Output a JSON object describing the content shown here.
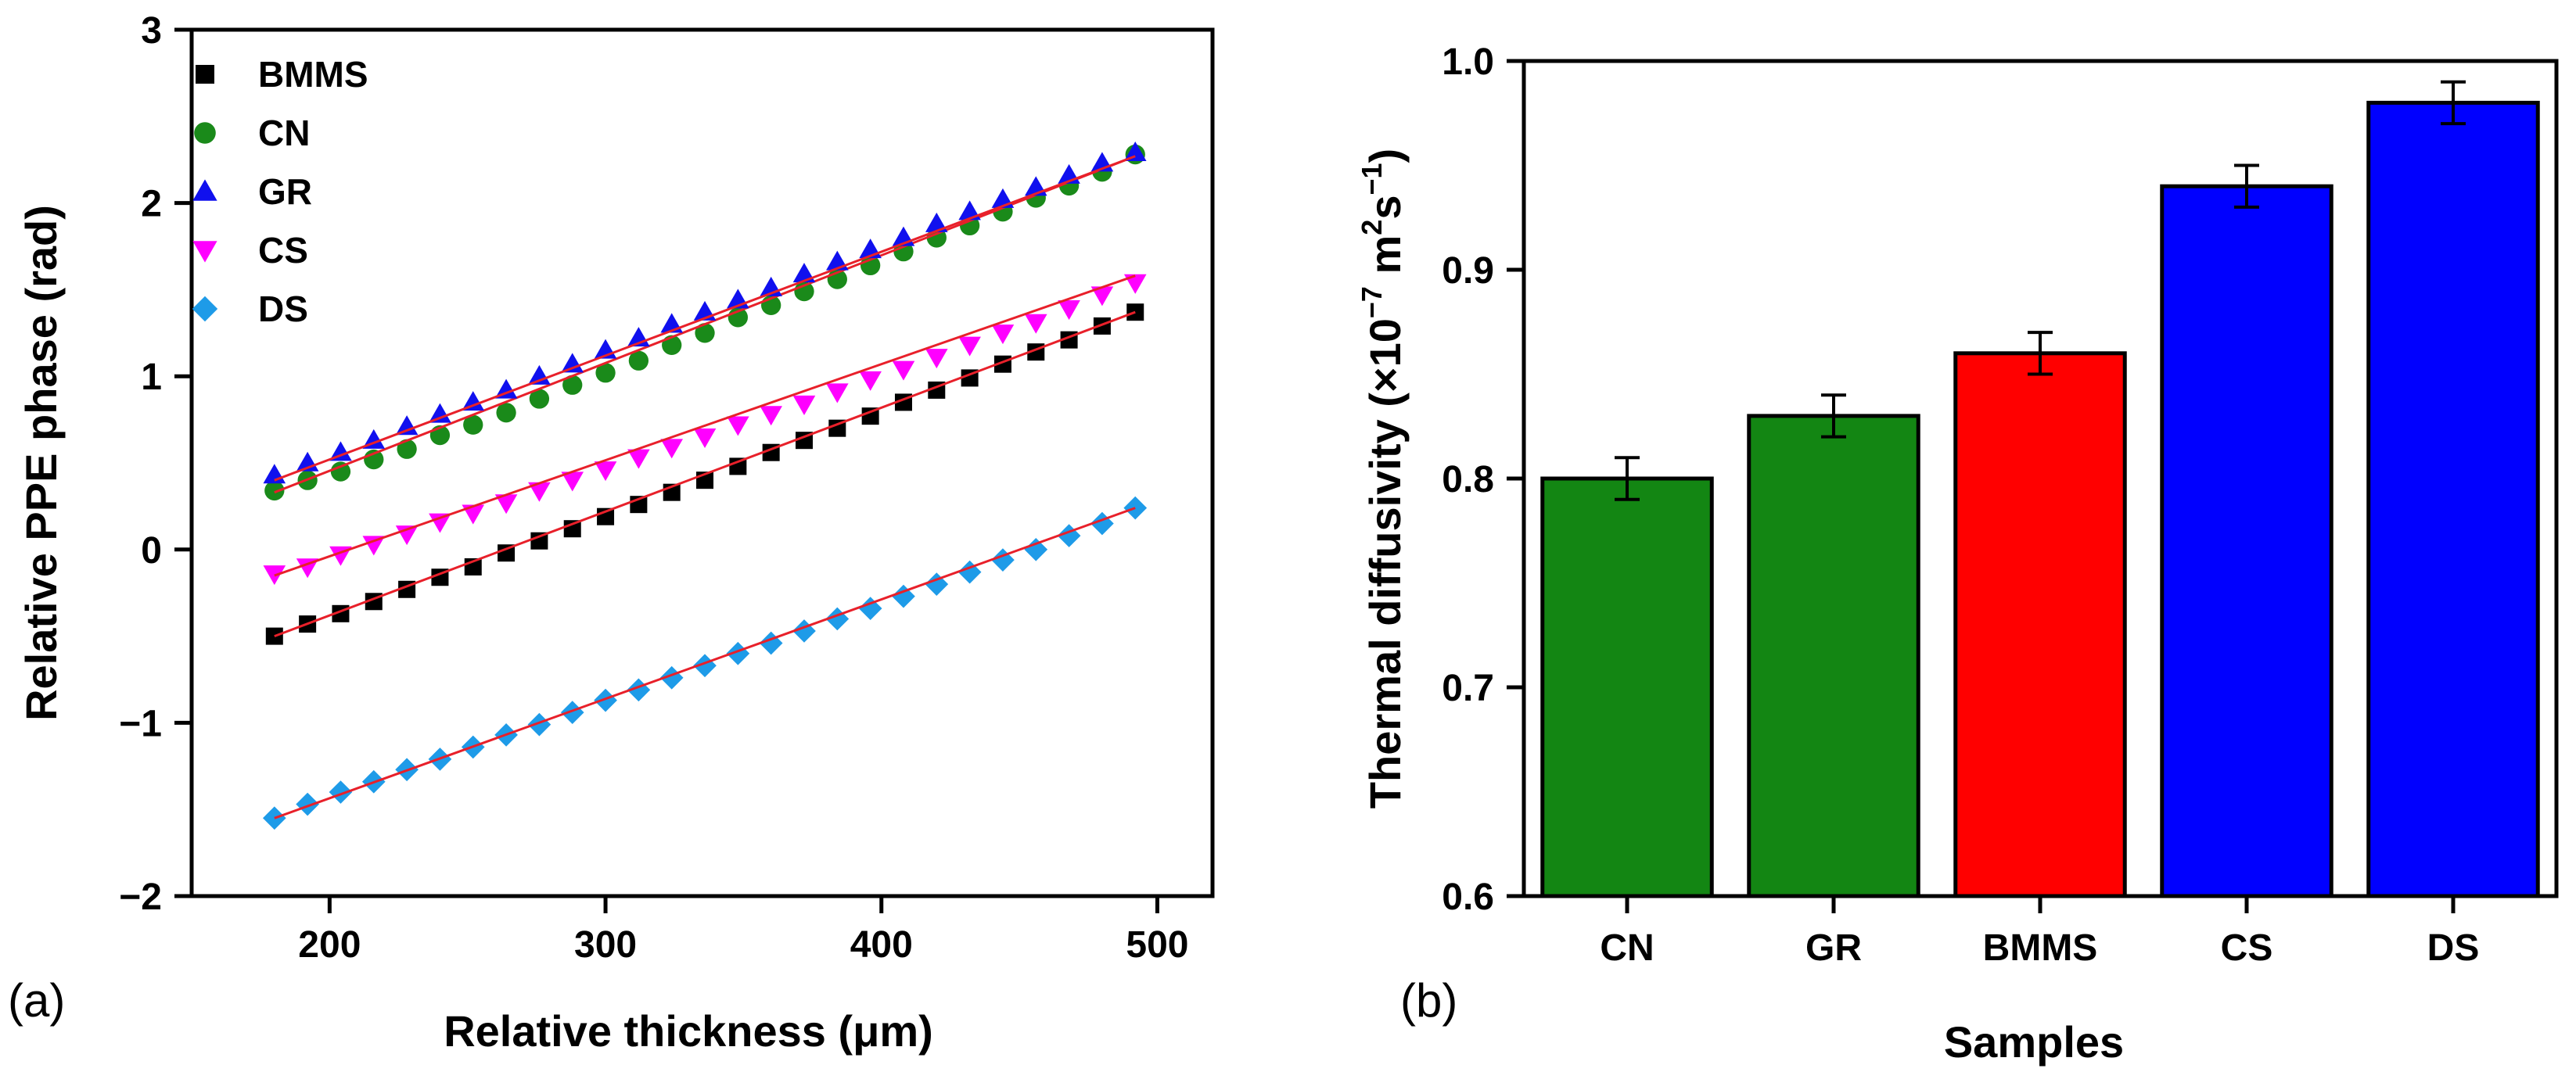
{
  "chart_data": [
    {
      "type": "scatter",
      "panel_label": "(a)",
      "xlabel": "Relative thickness (μm)",
      "ylabel": "Relative PPE phase (rad)",
      "xlim": [
        150,
        520
      ],
      "ylim": [
        -2,
        3
      ],
      "xticks": [
        200,
        300,
        400,
        500
      ],
      "yticks": [
        -2,
        -1,
        0,
        1,
        2,
        3
      ],
      "x": [
        180,
        192,
        204,
        216,
        228,
        240,
        252,
        264,
        276,
        288,
        300,
        312,
        324,
        336,
        348,
        360,
        372,
        384,
        396,
        408,
        420,
        432,
        444,
        456,
        468,
        480,
        492
      ],
      "fit_color": "#e8202a",
      "series": [
        {
          "name": "BMMS",
          "marker": "square",
          "color": "#000000",
          "values": [
            -0.5,
            -0.43,
            -0.37,
            -0.3,
            -0.23,
            -0.16,
            -0.1,
            -0.02,
            0.05,
            0.12,
            0.19,
            0.26,
            0.33,
            0.4,
            0.48,
            0.56,
            0.63,
            0.7,
            0.77,
            0.85,
            0.92,
            0.99,
            1.07,
            1.14,
            1.21,
            1.29,
            1.37
          ],
          "fit": [
            -0.5,
            1.37
          ]
        },
        {
          "name": "CN",
          "marker": "circle",
          "color": "#1a8a1a",
          "values": [
            0.34,
            0.4,
            0.45,
            0.52,
            0.58,
            0.66,
            0.72,
            0.79,
            0.87,
            0.95,
            1.02,
            1.09,
            1.18,
            1.25,
            1.34,
            1.41,
            1.49,
            1.56,
            1.64,
            1.72,
            1.8,
            1.87,
            1.95,
            2.03,
            2.1,
            2.18,
            2.28
          ],
          "fit": [
            0.33,
            2.27
          ]
        },
        {
          "name": "GR",
          "marker": "triangle-up",
          "color": "#1010ee",
          "values": [
            0.43,
            0.5,
            0.56,
            0.63,
            0.71,
            0.78,
            0.85,
            0.92,
            1.0,
            1.07,
            1.15,
            1.22,
            1.3,
            1.37,
            1.44,
            1.51,
            1.59,
            1.66,
            1.73,
            1.8,
            1.88,
            1.95,
            2.02,
            2.09,
            2.16,
            2.23,
            2.29
          ],
          "fit": [
            0.4,
            2.27
          ]
        },
        {
          "name": "CS",
          "marker": "triangle-down",
          "color": "#ff00ff",
          "values": [
            -0.14,
            -0.1,
            -0.03,
            0.03,
            0.09,
            0.16,
            0.21,
            0.27,
            0.34,
            0.4,
            0.46,
            0.53,
            0.59,
            0.65,
            0.72,
            0.78,
            0.84,
            0.91,
            0.98,
            1.04,
            1.11,
            1.18,
            1.25,
            1.31,
            1.39,
            1.47,
            1.54
          ],
          "fit": [
            -0.15,
            1.58
          ]
        },
        {
          "name": "DS",
          "marker": "diamond",
          "color": "#1e9be8",
          "values": [
            -1.55,
            -1.47,
            -1.4,
            -1.34,
            -1.27,
            -1.21,
            -1.14,
            -1.07,
            -1.01,
            -0.94,
            -0.87,
            -0.81,
            -0.74,
            -0.67,
            -0.6,
            -0.54,
            -0.47,
            -0.4,
            -0.34,
            -0.27,
            -0.2,
            -0.13,
            -0.06,
            0.0,
            0.08,
            0.15,
            0.24
          ],
          "fit": [
            -1.55,
            0.24
          ]
        }
      ]
    },
    {
      "type": "bar",
      "panel_label": "(b)",
      "xlabel": "Samples",
      "ylabel_main": "Thermal diffusivity (×10",
      "ylabel_exp1": "−7",
      "ylabel_mid": " m",
      "ylabel_exp2": "2",
      "ylabel_s": "s",
      "ylabel_exp3": "−1",
      "ylabel_end": ")",
      "ylim": [
        0.6,
        1.0
      ],
      "yticks": [
        "0.6",
        "0.7",
        "0.8",
        "0.9",
        "1.0"
      ],
      "categories": [
        "CN",
        "GR",
        "BMMS",
        "CS",
        "DS"
      ],
      "values": [
        0.8,
        0.83,
        0.86,
        0.94,
        0.98
      ],
      "errors": [
        0.01,
        0.01,
        0.01,
        0.01,
        0.01
      ],
      "colors": [
        "#138613",
        "#138613",
        "#ff0000",
        "#0000ff",
        "#0000ff"
      ]
    }
  ]
}
